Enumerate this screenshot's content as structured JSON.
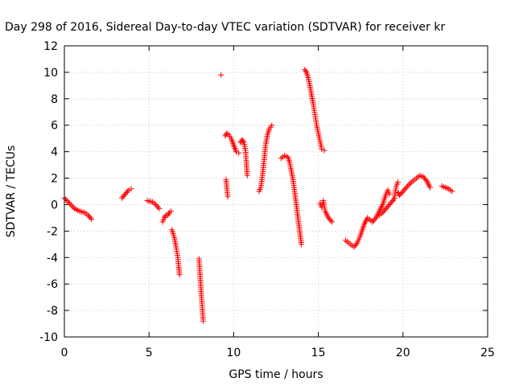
{
  "chart_data": {
    "type": "scatter",
    "title": "Day 298 of 2016, Sidereal Day-to-day VTEC variation (SDTVAR) for receiver kr",
    "xlabel": "GPS time / hours",
    "ylabel": "SDTVAR / TECUs",
    "xlim": [
      0,
      25
    ],
    "ylim": [
      -10,
      12
    ],
    "xticks": [
      "0",
      "5",
      "10",
      "15",
      "20",
      "25"
    ],
    "yticks": [
      "-10",
      "-8",
      "-6",
      "-4",
      "-2",
      "0",
      "2",
      "4",
      "6",
      "8",
      "10",
      "12"
    ],
    "grid": true,
    "marker": "plus",
    "color": "#ff0000",
    "segments": [
      {
        "x": [
          0.0,
          0.3,
          0.6,
          0.9,
          1.2,
          1.4,
          1.6
        ],
        "y": [
          0.5,
          0.1,
          -0.3,
          -0.5,
          -0.6,
          -0.8,
          -1.1
        ]
      },
      {
        "x": [
          3.4,
          3.6,
          3.8,
          3.95
        ],
        "y": [
          0.5,
          0.8,
          1.1,
          1.2
        ]
      },
      {
        "x": [
          4.9,
          5.2,
          5.4,
          5.6
        ],
        "y": [
          0.3,
          0.2,
          0.0,
          -0.3
        ]
      },
      {
        "x": [
          5.8,
          5.9,
          6.0,
          6.1,
          6.2,
          6.3
        ],
        "y": [
          -1.3,
          -1.0,
          -0.8,
          -0.8,
          -0.6,
          -0.5
        ]
      },
      {
        "x": [
          6.35,
          6.5,
          6.6,
          6.7,
          6.75,
          6.8
        ],
        "y": [
          -1.9,
          -2.5,
          -3.2,
          -4.0,
          -4.6,
          -5.3
        ]
      },
      {
        "x": [
          7.95,
          8.0,
          8.05,
          8.1,
          8.15,
          8.2
        ],
        "y": [
          -4.1,
          -5.0,
          -6.0,
          -7.0,
          -7.9,
          -8.8
        ]
      },
      {
        "x": [
          9.25
        ],
        "y": [
          9.8
        ]
      },
      {
        "x": [
          9.5,
          9.6,
          9.7,
          9.85,
          10.0,
          10.15,
          10.3
        ],
        "y": [
          5.2,
          5.4,
          5.3,
          5.0,
          4.5,
          4.0,
          3.9
        ]
      },
      {
        "x": [
          9.55,
          9.6,
          9.65
        ],
        "y": [
          1.9,
          1.2,
          0.6
        ]
      },
      {
        "x": [
          10.4,
          10.5,
          10.6,
          10.7,
          10.75,
          10.8
        ],
        "y": [
          4.7,
          4.9,
          4.7,
          4.1,
          3.2,
          2.2
        ]
      },
      {
        "x": [
          11.5,
          11.6,
          11.7,
          11.8,
          11.9,
          12.0,
          12.1,
          12.25
        ],
        "y": [
          1.0,
          1.3,
          2.2,
          3.4,
          4.6,
          5.3,
          5.7,
          6.0
        ]
      },
      {
        "x": [
          12.8,
          13.0,
          13.2,
          13.3,
          13.4,
          13.5,
          13.6,
          13.7,
          13.8,
          13.9,
          14.0
        ],
        "y": [
          3.5,
          3.7,
          3.6,
          3.2,
          2.6,
          1.9,
          1.0,
          0.0,
          -1.0,
          -2.0,
          -3.0
        ]
      },
      {
        "x": [
          14.2,
          14.3,
          14.4,
          14.5,
          14.6,
          14.7,
          14.8,
          14.9,
          15.0,
          15.1,
          15.2,
          15.35
        ],
        "y": [
          10.2,
          10.0,
          9.6,
          9.0,
          8.3,
          7.6,
          6.8,
          6.0,
          5.4,
          4.8,
          4.2,
          4.1
        ]
      },
      {
        "x": [
          15.1,
          15.2,
          15.3,
          15.4,
          15.6,
          15.8
        ],
        "y": [
          0.1,
          -0.2,
          0.3,
          -0.5,
          -1.0,
          -1.3
        ]
      },
      {
        "x": [
          16.6,
          16.9,
          17.1,
          17.3,
          17.5,
          17.7,
          17.9,
          18.2
        ],
        "y": [
          -2.7,
          -3.0,
          -3.2,
          -2.9,
          -2.3,
          -1.5,
          -1.0,
          -1.3
        ]
      },
      {
        "x": [
          18.2,
          18.4,
          18.6,
          18.8,
          18.9,
          19.0,
          19.1,
          19.2
        ],
        "y": [
          -1.3,
          -1.0,
          -0.5,
          0.0,
          0.4,
          0.8,
          1.1,
          0.8
        ]
      },
      {
        "x": [
          18.6,
          18.8,
          19.0,
          19.2,
          19.4,
          19.5,
          19.6,
          19.7
        ],
        "y": [
          -0.8,
          -0.6,
          -0.3,
          0.0,
          0.3,
          0.5,
          1.4,
          1.7
        ]
      },
      {
        "x": [
          19.7,
          19.8,
          20.0,
          20.2,
          20.5,
          20.8,
          21.0,
          21.2,
          21.4,
          21.6
        ],
        "y": [
          0.9,
          0.7,
          1.0,
          1.3,
          1.7,
          2.0,
          2.2,
          2.1,
          1.8,
          1.3
        ]
      },
      {
        "x": [
          22.3,
          22.5,
          22.7,
          22.9
        ],
        "y": [
          1.4,
          1.3,
          1.2,
          1.0
        ]
      }
    ]
  }
}
